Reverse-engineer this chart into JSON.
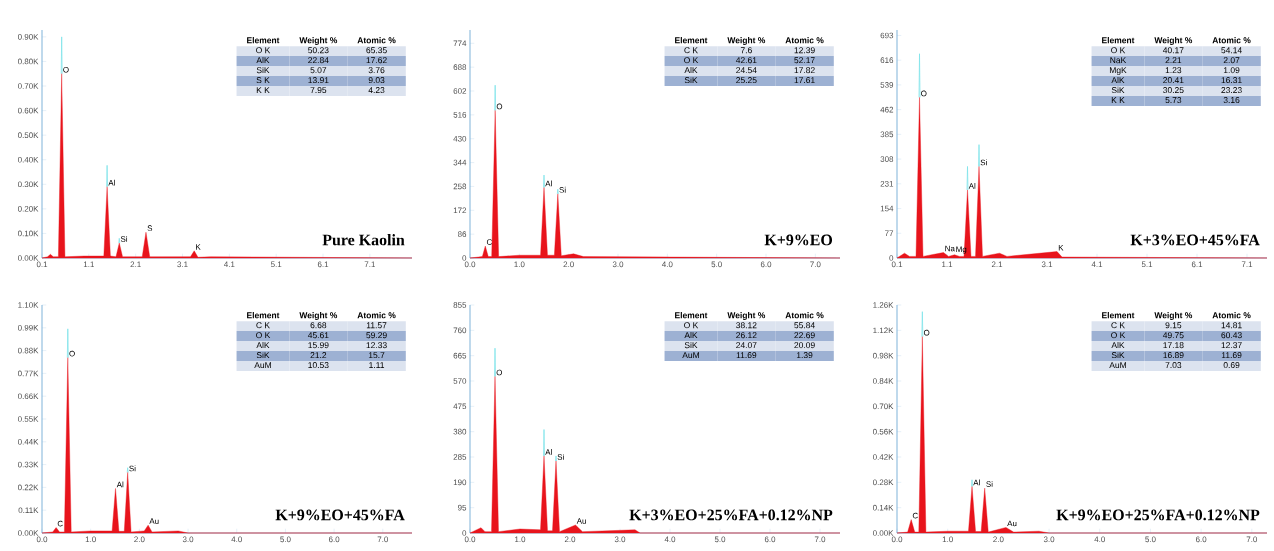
{
  "chart_data": [
    {
      "type": "area",
      "title": "Pure Kaolin",
      "xlim": [
        0.1,
        8.0
      ],
      "ylim": [
        0,
        928
      ],
      "xticks": [
        0.1,
        1.1,
        2.1,
        3.1,
        4.1,
        5.1,
        6.1,
        7.1
      ],
      "yticks": [
        {
          "value": 0,
          "label": "0.00K"
        },
        {
          "value": 100,
          "label": "0.10K"
        },
        {
          "value": 200,
          "label": "0.20K"
        },
        {
          "value": 300,
          "label": "0.30K"
        },
        {
          "value": 400,
          "label": "0.40K"
        },
        {
          "value": 500,
          "label": "0.50K"
        },
        {
          "value": 600,
          "label": "0.60K"
        },
        {
          "value": 700,
          "label": "0.70K"
        },
        {
          "value": 800,
          "label": "0.80K"
        },
        {
          "value": 900,
          "label": "0.90K"
        }
      ],
      "series": [
        {
          "type": "line",
          "color": "#7fe3ea",
          "x": [
            0.51,
            0.52,
            0.53,
            0.54,
            1.48,
            1.49,
            1.5,
            1.51,
            1.74,
            1.75,
            1.76
          ],
          "values": [
            750,
            900,
            750,
            null,
            290,
            377,
            290,
            null,
            61,
            80,
            61
          ]
        },
        {
          "color": "#e8141c",
          "x": [
            0.1,
            0.22,
            0.28,
            0.34,
            0.45,
            0.52,
            0.59,
            1.0,
            1.42,
            1.49,
            1.56,
            1.68,
            1.75,
            1.82,
            2.24,
            2.32,
            2.4,
            3.27,
            3.35,
            3.43,
            3.7,
            8.0
          ],
          "values": [
            0,
            5,
            15,
            5,
            5,
            750,
            5,
            8,
            8,
            290,
            8,
            5,
            61,
            5,
            5,
            105,
            5,
            5,
            29,
            3,
            5,
            0
          ]
        }
      ],
      "annotations": [
        {
          "text": "O",
          "x": 0.52,
          "y": 750
        },
        {
          "text": "Al",
          "x": 1.49,
          "y": 290
        },
        {
          "text": "Si",
          "x": 1.75,
          "y": 61
        },
        {
          "text": "S",
          "x": 2.32,
          "y": 105
        },
        {
          "text": "K",
          "x": 3.35,
          "y": 29
        },
        "Element",
        "Weight %",
        "Atomic %",
        "O K",
        "50.23",
        "65.35",
        "AlK",
        "22.84",
        "17.62",
        "SiK",
        "5.07",
        "3.76",
        "S K",
        "13.91",
        "9.03",
        "K K",
        "7.95",
        "4.23"
      ]
    },
    {
      "type": "area",
      "title": "K+9%EO",
      "xlim": [
        0,
        7.5
      ],
      "ylim": [
        0,
        822
      ],
      "xticks": [
        {
          "value": 0,
          "label": "0.0"
        },
        {
          "value": 1,
          "label": "1.0"
        },
        {
          "value": 2,
          "label": "2.0"
        },
        {
          "value": 3,
          "label": "3.0"
        },
        {
          "value": 4,
          "label": "4.0"
        },
        {
          "value": 5,
          "label": "5.0"
        },
        {
          "value": 6,
          "label": "6.0"
        },
        {
          "value": 7,
          "label": "7.0"
        }
      ],
      "yticks": [
        0,
        86,
        172,
        258,
        344,
        430,
        516,
        602,
        688,
        774
      ],
      "series": [
        {
          "type": "line",
          "color": "#7fe3ea",
          "x": [
            0.5,
            0.51,
            0.52,
            0.53,
            1.49,
            1.5,
            1.51,
            1.52,
            1.77,
            1.78,
            1.79
          ],
          "values": [
            532,
            623,
            532,
            null,
            254,
            299,
            254,
            null,
            231,
            248,
            231
          ]
        },
        {
          "color": "#e8141c",
          "x": [
            0,
            0.25,
            0.31,
            0.37,
            0.44,
            0.51,
            0.58,
            1.0,
            1.43,
            1.5,
            1.57,
            1.71,
            1.78,
            1.85,
            2.1,
            2.3,
            7.5
          ],
          "values": [
            0,
            5,
            43,
            5,
            5,
            532,
            5,
            10,
            10,
            254,
            10,
            10,
            231,
            8,
            15,
            5,
            0
          ]
        }
      ],
      "annotations": [
        {
          "text": "C",
          "x": 0.31,
          "y": 43
        },
        {
          "text": "O",
          "x": 0.51,
          "y": 532
        },
        {
          "text": "Al",
          "x": 1.5,
          "y": 254
        },
        {
          "text": "Si",
          "x": 1.78,
          "y": 231
        },
        "Element",
        "Weight %",
        "Atomic %",
        "C K",
        "7.6",
        "12.39",
        "O K",
        "42.61",
        "52.17",
        "AlK",
        "24.54",
        "17.82",
        "SiK",
        "25.25",
        "17.61"
      ]
    },
    {
      "type": "area",
      "title": "K+3%EO+45%FA",
      "xlim": [
        0.1,
        7.5
      ],
      "ylim": [
        0,
        710
      ],
      "xticks": [
        0.1,
        1.1,
        2.1,
        3.1,
        4.1,
        5.1,
        6.1,
        7.1
      ],
      "yticks": [
        0,
        77,
        154,
        231,
        308,
        385,
        462,
        539,
        616,
        693
      ],
      "series": [
        {
          "type": "line",
          "color": "#7fe3ea",
          "x": [
            0.54,
            0.55,
            0.56,
            0.57,
            1.5,
            1.51,
            1.52,
            1.53,
            1.73,
            1.74,
            1.75
          ],
          "values": [
            500,
            636,
            500,
            null,
            212,
            285,
            212,
            null,
            285,
            353,
            285
          ]
        },
        {
          "color": "#e8141c",
          "x": [
            0.1,
            0.25,
            0.35,
            0.48,
            0.55,
            0.62,
            1.03,
            1.13,
            1.25,
            1.35,
            1.44,
            1.51,
            1.58,
            1.67,
            1.74,
            1.81,
            2.15,
            2.3,
            3.3,
            3.4,
            7.5
          ],
          "values": [
            0,
            15,
            5,
            5,
            500,
            5,
            17,
            5,
            10,
            5,
            5,
            212,
            5,
            5,
            285,
            5,
            15,
            5,
            20,
            3,
            0
          ]
        }
      ],
      "annotations": [
        {
          "text": "O",
          "x": 0.55,
          "y": 500
        },
        {
          "text": "Na",
          "x": 1.03,
          "y": 17
        },
        {
          "text": "Mg",
          "x": 1.25,
          "y": 10
        },
        {
          "text": "Al",
          "x": 1.51,
          "y": 212
        },
        {
          "text": "Si",
          "x": 1.74,
          "y": 285
        },
        {
          "text": "K",
          "x": 3.3,
          "y": 20
        },
        "Element",
        "Weight %",
        "Atomic %",
        "O K",
        "40.17",
        "54.14",
        "NaK",
        "2.21",
        "2.07",
        "MgK",
        "1.23",
        "1.09",
        "AlK",
        "20.41",
        "16.31",
        "SiK",
        "30.25",
        "23.23",
        "K K",
        "5.73",
        "3.16"
      ]
    },
    {
      "type": "area",
      "title": "K+9%EO+45%FA",
      "xlim": [
        0,
        7.6
      ],
      "ylim": [
        0,
        1100
      ],
      "xticks": [
        {
          "value": 0,
          "label": "0.0"
        },
        {
          "value": 1,
          "label": "1.0"
        },
        {
          "value": 2,
          "label": "2.0"
        },
        {
          "value": 3,
          "label": "3.0"
        },
        {
          "value": 4,
          "label": "4.0"
        },
        {
          "value": 5,
          "label": "5.0"
        },
        {
          "value": 6,
          "label": "6.0"
        },
        {
          "value": 7,
          "label": "7.0"
        }
      ],
      "yticks": [
        {
          "value": 0,
          "label": "0.00K"
        },
        {
          "value": 110,
          "label": "0.11K"
        },
        {
          "value": 220,
          "label": "0.22K"
        },
        {
          "value": 330,
          "label": "0.33K"
        },
        {
          "value": 440,
          "label": "0.44K"
        },
        {
          "value": 550,
          "label": "0.55K"
        },
        {
          "value": 660,
          "label": "0.66K"
        },
        {
          "value": 770,
          "label": "0.77K"
        },
        {
          "value": 880,
          "label": "0.88K"
        },
        {
          "value": 990,
          "label": "0.99K"
        },
        {
          "value": 1100,
          "label": "1.10K"
        }
      ],
      "series": [
        {
          "type": "line",
          "color": "#7fe3ea",
          "x": [
            0.52,
            0.53,
            0.54,
            0.55,
            1.75,
            1.76,
            1.77
          ],
          "values": [
            846,
            985,
            846,
            null,
            292,
            315,
            292
          ]
        },
        {
          "color": "#e8141c",
          "x": [
            0,
            0.22,
            0.29,
            0.36,
            0.46,
            0.53,
            0.6,
            1.0,
            1.44,
            1.51,
            1.58,
            1.69,
            1.76,
            1.83,
            2.1,
            2.18,
            2.26,
            2.8,
            3.0,
            7.6
          ],
          "values": [
            0,
            5,
            26,
            5,
            5,
            846,
            5,
            10,
            10,
            215,
            8,
            8,
            292,
            5,
            10,
            38,
            5,
            10,
            0,
            0
          ]
        }
      ],
      "annotations": [
        {
          "text": "C",
          "x": 0.29,
          "y": 26
        },
        {
          "text": "O",
          "x": 0.53,
          "y": 846
        },
        {
          "text": "Al",
          "x": 1.51,
          "y": 215
        },
        {
          "text": "Si",
          "x": 1.76,
          "y": 292
        },
        {
          "text": "Au",
          "x": 2.18,
          "y": 38
        },
        "Element",
        "Weight %",
        "Atomic %",
        "C K",
        "6.68",
        "11.57",
        "O K",
        "45.61",
        "59.29",
        "AlK",
        "15.99",
        "12.33",
        "SiK",
        "21.2",
        "15.7",
        "AuM",
        "10.53",
        "1.11"
      ]
    },
    {
      "type": "area",
      "title": "K+3%EO+25%FA+0.12%NP",
      "xlim": [
        0,
        7.4
      ],
      "ylim": [
        0,
        855
      ],
      "xticks": [
        {
          "value": 0,
          "label": "0.0"
        },
        {
          "value": 1,
          "label": "1.0"
        },
        {
          "value": 2,
          "label": "2.0"
        },
        {
          "value": 3,
          "label": "3.0"
        },
        {
          "value": 4,
          "label": "4.0"
        },
        {
          "value": 5,
          "label": "5.0"
        },
        {
          "value": 6,
          "label": "6.0"
        },
        {
          "value": 7,
          "label": "7.0"
        }
      ],
      "yticks": [
        0,
        95,
        190,
        285,
        380,
        475,
        570,
        665,
        760,
        855
      ],
      "series": [
        {
          "type": "line",
          "color": "#7fe3ea",
          "x": [
            0.49,
            0.5,
            0.51,
            0.52,
            1.47,
            1.48,
            1.49,
            1.5,
            1.71,
            1.72,
            1.73
          ],
          "values": [
            587,
            693,
            587,
            null,
            289,
            388,
            289,
            null,
            270,
            289,
            270
          ]
        },
        {
          "color": "#e8141c",
          "x": [
            0,
            0.22,
            0.3,
            0.43,
            0.5,
            0.57,
            1.0,
            1.41,
            1.48,
            1.55,
            1.65,
            1.72,
            1.79,
            2.11,
            2.25,
            3.3,
            3.4,
            7.4
          ],
          "values": [
            0,
            20,
            5,
            5,
            587,
            5,
            15,
            12,
            289,
            8,
            8,
            270,
            5,
            30,
            5,
            12,
            0,
            0
          ]
        }
      ],
      "annotations": [
        {
          "text": "O",
          "x": 0.5,
          "y": 587
        },
        {
          "text": "Al",
          "x": 1.48,
          "y": 289
        },
        {
          "text": "Si",
          "x": 1.72,
          "y": 270
        },
        {
          "text": "Au",
          "x": 2.11,
          "y": 30
        },
        "Element",
        "Weight %",
        "Atomic %",
        "O K",
        "38.12",
        "55.84",
        "AlK",
        "26.12",
        "22.69",
        "SiK",
        "24.07",
        "20.09",
        "AuM",
        "11.69",
        "1.39"
      ]
    },
    {
      "type": "area",
      "title": "K+9%EO+25%FA+0.12%NP",
      "xlim": [
        0,
        7.3
      ],
      "ylim": [
        0,
        1260
      ],
      "xticks": [
        {
          "value": 0,
          "label": "0.0"
        },
        {
          "value": 1,
          "label": "1.0"
        },
        {
          "value": 2,
          "label": "2.0"
        },
        {
          "value": 3,
          "label": "3.0"
        },
        {
          "value": 4,
          "label": "4.0"
        },
        {
          "value": 5,
          "label": "5.0"
        },
        {
          "value": 6,
          "label": "6.0"
        },
        {
          "value": 7,
          "label": "7.0"
        }
      ],
      "yticks": [
        {
          "value": 0,
          "label": "0.00K"
        },
        {
          "value": 140,
          "label": "0.14K"
        },
        {
          "value": 280,
          "label": "0.28K"
        },
        {
          "value": 420,
          "label": "0.42K"
        },
        {
          "value": 560,
          "label": "0.56K"
        },
        {
          "value": 700,
          "label": "0.70K"
        },
        {
          "value": 840,
          "label": "0.84K"
        },
        {
          "value": 980,
          "label": "0.98K"
        },
        {
          "value": 1120,
          "label": "1.12K"
        },
        {
          "value": 1260,
          "label": "1.26K"
        }
      ],
      "series": [
        {
          "type": "line",
          "color": "#7fe3ea",
          "x": [
            0.49,
            0.5,
            0.51,
            0.52,
            1.47,
            1.48,
            1.49
          ],
          "values": [
            1085,
            1223,
            1085,
            null,
            257,
            294,
            257
          ]
        },
        {
          "color": "#e8141c",
          "x": [
            0,
            0.21,
            0.28,
            0.35,
            0.43,
            0.5,
            0.57,
            1.0,
            1.41,
            1.48,
            1.55,
            1.66,
            1.73,
            1.8,
            2.15,
            2.3,
            2.8,
            3.0,
            7.3
          ],
          "values": [
            0,
            5,
            74,
            5,
            5,
            1085,
            5,
            10,
            10,
            257,
            8,
            8,
            248,
            5,
            31,
            5,
            10,
            0,
            0
          ]
        }
      ],
      "annotations": [
        {
          "text": "C",
          "x": 0.28,
          "y": 74
        },
        {
          "text": "O",
          "x": 0.5,
          "y": 1085
        },
        {
          "text": "Al",
          "x": 1.48,
          "y": 257
        },
        {
          "text": "Si",
          "x": 1.73,
          "y": 248
        },
        {
          "text": "Au",
          "x": 2.15,
          "y": 31
        },
        "Element",
        "Weight %",
        "Atomic %",
        "C K",
        "9.15",
        "14.81",
        "O K",
        "49.75",
        "60.43",
        "AlK",
        "17.18",
        "12.37",
        "SiK",
        "16.89",
        "11.69",
        "AuM",
        "7.03",
        "0.69"
      ]
    }
  ]
}
